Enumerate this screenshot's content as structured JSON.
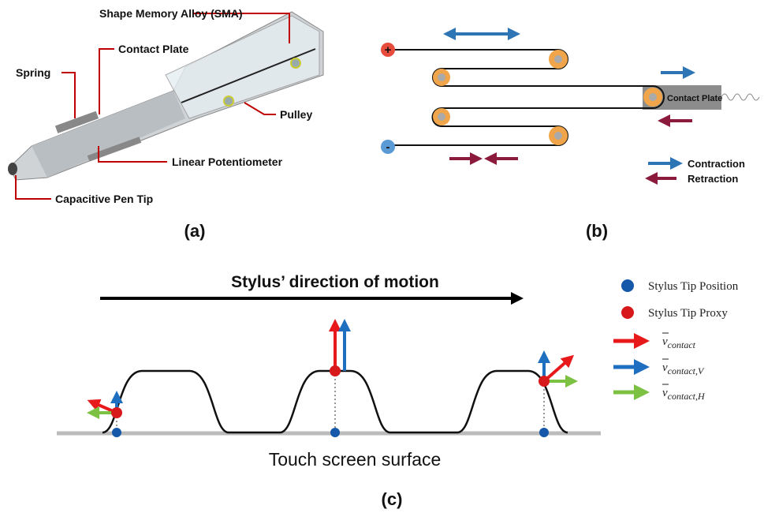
{
  "panel_a": {
    "labels": {
      "sma": "Shape Memory Alloy (SMA)",
      "contact_plate": "Contact Plate",
      "spring": "Spring",
      "pulley": "Pulley",
      "potentiometer": "Linear Potentiometer",
      "pen_tip": "Capacitive Pen Tip"
    },
    "caption": "(a)"
  },
  "panel_b": {
    "plus": "+",
    "minus": "-",
    "contact_plate": "Contact Plate",
    "legend": {
      "contraction": "Contraction",
      "retraction": "Retraction"
    },
    "caption": "(b)"
  },
  "panel_c": {
    "motion_title": "Stylus’ direction of motion",
    "surface": "Touch screen surface",
    "legend": {
      "tip_position": "Stylus Tip Position",
      "tip_proxy": "Stylus Tip Proxy",
      "v_contact": {
        "symbol": "v",
        "subscript": "contact"
      },
      "v_contact_v": {
        "symbol": "v",
        "subscript": "contact,V"
      },
      "v_contact_h": {
        "symbol": "v",
        "subscript": "contact,H"
      }
    },
    "caption": "(c)"
  }
}
